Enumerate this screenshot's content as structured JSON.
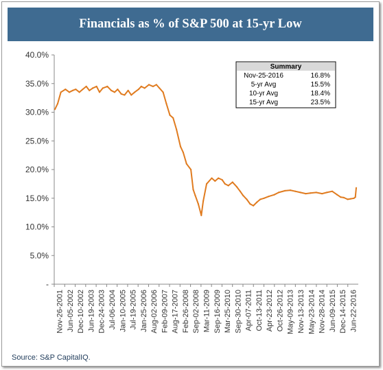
{
  "title": "Financials as % of S&P 500 at 15-yr Low",
  "source": "Source:  S&P CapitalIQ.",
  "colors": {
    "banner": "#3f6b91",
    "line": "#e07b1f",
    "axis": "#888888"
  },
  "summary": {
    "heading": "Summary",
    "rows": [
      {
        "label": "Nov-25-2016",
        "value": "16.8%"
      },
      {
        "label": "5-yr Avg",
        "value": "15.5%"
      },
      {
        "label": "10-yr Avg",
        "value": "18.4%"
      },
      {
        "label": "15-yr Avg",
        "value": "23.5%"
      }
    ]
  },
  "chart_data": {
    "type": "line",
    "title": "Financials as % of S&P 500 at 15-yr Low",
    "xlabel": "",
    "ylabel": "",
    "ylim": [
      0,
      40
    ],
    "y_tick_labels": [
      "-",
      "5.0%",
      "10.0%",
      "15.0%",
      "20.0%",
      "25.0%",
      "30.0%",
      "35.0%",
      "40.0%"
    ],
    "x_tick_labels": [
      "Nov-26-2001",
      "Jun-05-2002",
      "Dec-10-2002",
      "Jun-19-2003",
      "Dec-24-2003",
      "Jul-06-2004",
      "Jan-10-2005",
      "Jul-19-2005",
      "Jan-25-2006",
      "Aug-02-2006",
      "Feb-09-2007",
      "Aug-17-2007",
      "Feb-26-2008",
      "Sep-02-2008",
      "Mar-11-2009",
      "Sep-16-2009",
      "Mar-25-2010",
      "Sep-30-2010",
      "Apr-07-2011",
      "Oct-13-2011",
      "Apr-23-2012",
      "Oct-26-2012",
      "May-09-2013",
      "Nov-13-2013",
      "May-23-2014",
      "Nov-28-2014",
      "Jun-09-2015",
      "Dec-14-2015",
      "Jun-22-2016"
    ],
    "grid": false,
    "series": [
      {
        "x": [
          "Nov-26-2001",
          "Jan-15-2002",
          "Mar-15-2002",
          "Jun-05-2002",
          "Aug-15-2002",
          "Oct-15-2002",
          "Dec-10-2002",
          "Feb-15-2003",
          "Apr-15-2003",
          "Jun-19-2003",
          "Aug-15-2003",
          "Oct-15-2003",
          "Dec-24-2003",
          "Feb-15-2004",
          "Apr-15-2004",
          "Jul-06-2004",
          "Sep-15-2004",
          "Nov-15-2004",
          "Jan-10-2005",
          "Mar-15-2005",
          "May-15-2005",
          "Jul-19-2005",
          "Sep-15-2005",
          "Nov-15-2005",
          "Jan-25-2006",
          "Mar-15-2006",
          "May-15-2006",
          "Aug-02-2006",
          "Oct-15-2006",
          "Dec-15-2006",
          "Feb-09-2007",
          "Apr-15-2007",
          "Jun-15-2007",
          "Aug-17-2007",
          "Oct-15-2007",
          "Dec-15-2007",
          "Feb-26-2008",
          "Apr-15-2008",
          "Jun-15-2008",
          "Sep-02-2008",
          "Oct-15-2008",
          "Nov-20-2008",
          "Jan-15-2009",
          "Mar-11-2009",
          "Apr-15-2009",
          "Jun-15-2009",
          "Sep-16-2009",
          "Nov-15-2009",
          "Jan-15-2010",
          "Mar-25-2010",
          "May-15-2010",
          "Jul-15-2010",
          "Sep-30-2010",
          "Dec-15-2010",
          "Feb-15-2011",
          "Apr-07-2011",
          "Jun-15-2011",
          "Aug-15-2011",
          "Oct-13-2011",
          "Dec-15-2011",
          "Feb-15-2012",
          "Apr-23-2012",
          "Jul-15-2012",
          "Oct-26-2012",
          "Jan-15-2013",
          "May-09-2013",
          "Aug-15-2013",
          "Nov-13-2013",
          "Feb-15-2014",
          "May-23-2014",
          "Aug-15-2014",
          "Nov-28-2014",
          "Mar-15-2015",
          "Jun-09-2015",
          "Sep-15-2015",
          "Dec-14-2015",
          "Feb-15-2016",
          "Apr-15-2016",
          "Jun-22-2016",
          "Aug-15-2016",
          "Oct-15-2016",
          "Nov-09-2016",
          "Nov-25-2016"
        ],
        "values": [
          30.5,
          31.5,
          33.5,
          34.0,
          33.5,
          33.8,
          34.0,
          33.5,
          34.0,
          34.5,
          33.8,
          34.2,
          34.5,
          33.5,
          34.2,
          34.5,
          33.8,
          33.5,
          34.0,
          33.2,
          33.0,
          33.8,
          33.0,
          33.5,
          34.0,
          34.5,
          34.2,
          34.8,
          34.5,
          34.8,
          34.2,
          33.5,
          31.5,
          29.5,
          29.0,
          27.0,
          24.0,
          23.0,
          21.0,
          20.0,
          16.5,
          15.5,
          14.0,
          12.0,
          14.5,
          17.5,
          18.5,
          18.0,
          18.5,
          18.2,
          17.5,
          17.2,
          17.8,
          17.0,
          16.2,
          15.5,
          14.8,
          14.0,
          13.7,
          14.3,
          14.8,
          15.0,
          15.3,
          15.6,
          16.0,
          16.3,
          16.4,
          16.2,
          16.0,
          15.8,
          15.9,
          16.0,
          15.8,
          16.0,
          16.2,
          15.6,
          15.2,
          15.1,
          14.8,
          14.9,
          15.0,
          15.2,
          16.8
        ]
      }
    ]
  }
}
